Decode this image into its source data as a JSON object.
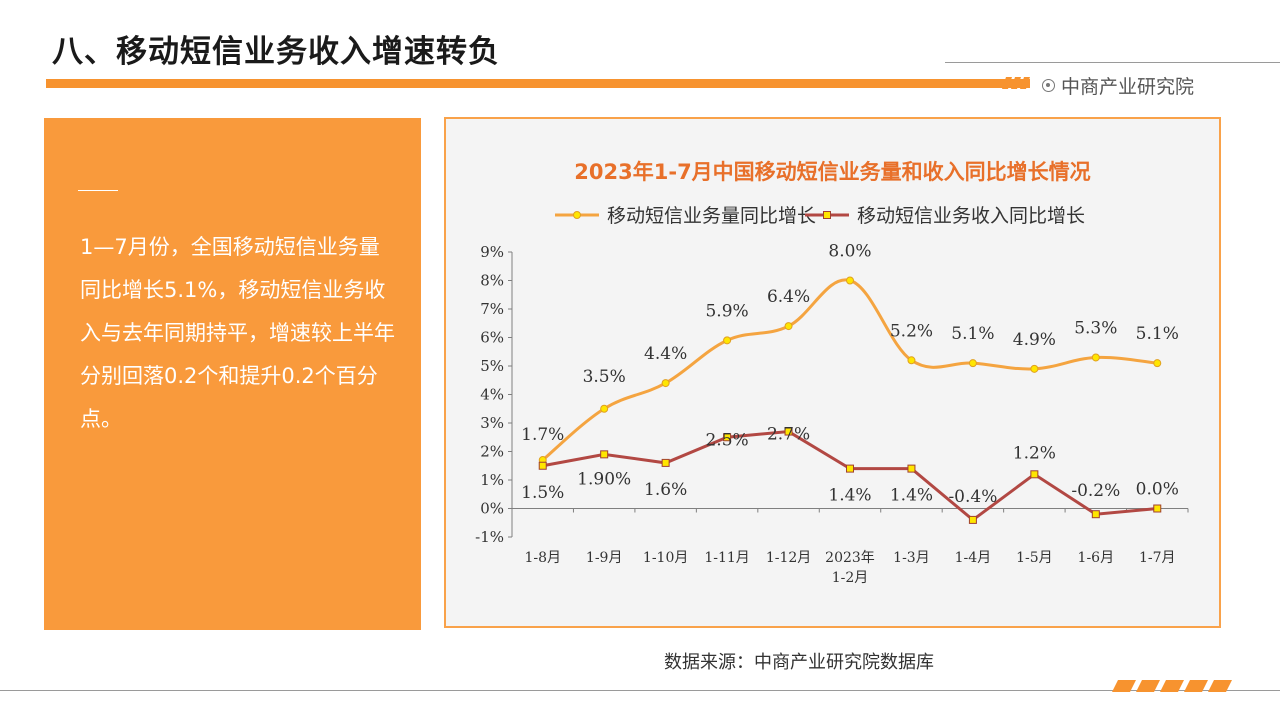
{
  "page": {
    "title": "八、移动短信业务收入增速转负",
    "brand": "中商产业研究院",
    "source": "数据来源：中商产业研究院数据库"
  },
  "side": {
    "text": "1—7月份，全国移动短信业务量同比增长5.1%，移动短信业务收入与去年同期持平，增速较上半年分别回落0.2个和提升0.2个百分点。"
  },
  "colors": {
    "accent": "#f7932f",
    "panel": "#f99a3c",
    "series1": "#f4a440",
    "series2": "#b24843",
    "marker": "#ffe600"
  },
  "chart_data": {
    "type": "line",
    "title": "2023年1-7月中国移动短信业务量和收入同比增长情况",
    "categories": [
      "1-8月",
      "1-9月",
      "1-10月",
      "1-11月",
      "1-12月",
      "2023年\n1-2月",
      "1-3月",
      "1-4月",
      "1-5月",
      "1-6月",
      "1-7月"
    ],
    "series": [
      {
        "name": "移动短信业务量同比增长",
        "values": [
          1.7,
          3.5,
          4.4,
          5.9,
          6.4,
          8.0,
          5.2,
          5.1,
          4.9,
          5.3,
          5.1
        ],
        "labels": [
          "1.7%",
          "3.5%",
          "4.4%",
          "5.9%",
          "6.4%",
          "8.0%",
          "5.2%",
          "5.1%",
          "4.9%",
          "5.3%",
          "5.1%"
        ],
        "smooth": true
      },
      {
        "name": "移动短信业务收入同比增长",
        "values": [
          1.5,
          1.9,
          1.6,
          2.5,
          2.7,
          1.4,
          1.4,
          -0.4,
          1.2,
          -0.2,
          0.0
        ],
        "labels": [
          "1.5%",
          "1.90%",
          "1.6%",
          "2.5%",
          "2.7%",
          "1.4%",
          "1.4%",
          "-0.4%",
          "1.2%",
          "-0.2%",
          "0.0%"
        ],
        "smooth": false
      }
    ],
    "ylim": [
      -1,
      9
    ],
    "yticks": [
      "-1%",
      "0%",
      "1%",
      "2%",
      "3%",
      "4%",
      "5%",
      "6%",
      "7%",
      "8%",
      "9%"
    ],
    "xlabel": "",
    "ylabel": "",
    "legend": "top",
    "grid": false
  }
}
